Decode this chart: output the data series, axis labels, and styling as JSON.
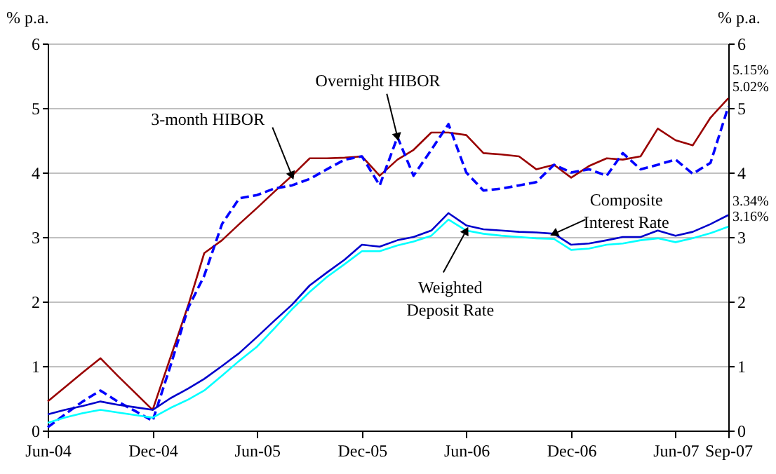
{
  "chart_data": {
    "type": "line",
    "ylabel": "% p.a.",
    "y2label": "% p.a.",
    "x": [
      "2004-06",
      "2004-07",
      "2004-08",
      "2004-09",
      "2004-10",
      "2004-11",
      "2004-12",
      "2005-01",
      "2005-02",
      "2005-03",
      "2005-04",
      "2005-05",
      "2005-06",
      "2005-07",
      "2005-08",
      "2005-09",
      "2005-10",
      "2005-11",
      "2005-12",
      "2006-01",
      "2006-02",
      "2006-03",
      "2006-04",
      "2006-05",
      "2006-06",
      "2006-07",
      "2006-08",
      "2006-09",
      "2006-10",
      "2006-11",
      "2006-12",
      "2007-01",
      "2007-02",
      "2007-03",
      "2007-04",
      "2007-05",
      "2007-06",
      "2007-07",
      "2007-08",
      "2007-09"
    ],
    "series": [
      {
        "name": "3-month HIBOR",
        "color": "#990000",
        "line_style": "solid",
        "values": [
          0.45,
          0.67,
          0.9,
          1.12,
          0.85,
          0.58,
          0.32,
          1.13,
          1.94,
          2.75,
          2.95,
          3.2,
          3.45,
          3.7,
          3.95,
          4.22,
          4.22,
          4.23,
          4.25,
          3.95,
          4.2,
          4.35,
          4.62,
          4.62,
          4.58,
          4.3,
          4.28,
          4.25,
          4.05,
          4.12,
          3.92,
          4.1,
          4.22,
          4.2,
          4.25,
          4.68,
          4.5,
          4.42,
          4.85,
          5.15
        ],
        "value_labels": [
          null,
          null,
          null,
          null,
          null,
          null,
          null,
          null,
          null,
          null,
          null,
          null,
          null,
          null,
          null,
          null,
          null,
          null,
          null,
          null,
          null,
          null,
          null,
          null,
          null,
          null,
          null,
          null,
          null,
          null,
          null,
          null,
          null,
          null,
          null,
          null,
          null,
          null,
          null,
          "5.15%"
        ]
      },
      {
        "name": "Overnight HIBOR",
        "color": "#0000ff",
        "line_style": "dashed",
        "values": [
          0.05,
          0.25,
          0.45,
          0.62,
          0.45,
          0.3,
          0.15,
          1.0,
          1.9,
          2.4,
          3.2,
          3.6,
          3.65,
          3.75,
          3.8,
          3.9,
          4.05,
          4.2,
          4.25,
          3.8,
          4.55,
          3.95,
          4.35,
          4.75,
          4.0,
          3.72,
          3.75,
          3.8,
          3.85,
          4.12,
          4.0,
          4.05,
          3.95,
          4.3,
          4.05,
          4.12,
          4.2,
          3.98,
          4.15,
          5.02
        ],
        "value_labels": [
          null,
          null,
          null,
          null,
          null,
          null,
          null,
          null,
          null,
          null,
          null,
          null,
          null,
          null,
          null,
          null,
          null,
          null,
          null,
          null,
          null,
          null,
          null,
          null,
          null,
          null,
          null,
          null,
          null,
          null,
          null,
          null,
          null,
          null,
          null,
          null,
          null,
          null,
          null,
          "5.02%"
        ]
      },
      {
        "name": "Composite Interest Rate",
        "color": "#0000cc",
        "line_style": "solid",
        "values": [
          0.25,
          0.32,
          0.38,
          0.45,
          0.4,
          0.36,
          0.32,
          0.5,
          0.65,
          0.8,
          1.0,
          1.2,
          1.45,
          1.7,
          1.95,
          2.25,
          2.45,
          2.65,
          2.88,
          2.85,
          2.95,
          3.0,
          3.1,
          3.37,
          3.18,
          3.12,
          3.1,
          3.08,
          3.07,
          3.05,
          2.88,
          2.9,
          2.95,
          3.0,
          3.0,
          3.1,
          3.02,
          3.08,
          3.2,
          3.34
        ],
        "value_labels": [
          null,
          null,
          null,
          null,
          null,
          null,
          null,
          null,
          null,
          null,
          null,
          null,
          null,
          null,
          null,
          null,
          null,
          null,
          null,
          null,
          null,
          null,
          null,
          null,
          null,
          null,
          null,
          null,
          null,
          null,
          null,
          null,
          null,
          null,
          null,
          null,
          null,
          null,
          null,
          "3.34%"
        ]
      },
      {
        "name": "Weighted Deposit Rate",
        "color": "#00ffff",
        "line_style": "solid",
        "values": [
          0.12,
          0.2,
          0.27,
          0.32,
          0.28,
          0.24,
          0.2,
          0.35,
          0.48,
          0.62,
          0.85,
          1.08,
          1.3,
          1.58,
          1.88,
          2.15,
          2.38,
          2.58,
          2.78,
          2.78,
          2.87,
          2.93,
          3.02,
          3.27,
          3.1,
          3.05,
          3.02,
          3.0,
          2.98,
          2.97,
          2.8,
          2.82,
          2.88,
          2.9,
          2.95,
          2.98,
          2.92,
          2.98,
          3.06,
          3.16
        ],
        "value_labels": [
          null,
          null,
          null,
          null,
          null,
          null,
          null,
          null,
          null,
          null,
          null,
          null,
          null,
          null,
          null,
          null,
          null,
          null,
          null,
          null,
          null,
          null,
          null,
          null,
          null,
          null,
          null,
          null,
          null,
          null,
          null,
          null,
          null,
          null,
          null,
          null,
          null,
          null,
          null,
          "3.16%"
        ]
      }
    ],
    "xlim": [
      "2004-06",
      "2007-09"
    ],
    "xticks": [
      {
        "value": "2004-06",
        "label": "Jun-04"
      },
      {
        "value": "2004-12",
        "label": "Dec-04"
      },
      {
        "value": "2005-06",
        "label": "Jun-05"
      },
      {
        "value": "2005-12",
        "label": "Dec-05"
      },
      {
        "value": "2006-06",
        "label": "Jun-06"
      },
      {
        "value": "2006-12",
        "label": "Dec-06"
      },
      {
        "value": "2007-06",
        "label": "Jun-07"
      },
      {
        "value": "2007-09",
        "label": "Sep-07"
      }
    ],
    "ylim": [
      0,
      6
    ],
    "yticks": [
      0,
      1,
      2,
      3,
      4,
      5,
      6
    ],
    "y2lim": [
      0,
      6
    ],
    "y2ticks": [
      0,
      1,
      2,
      3,
      4,
      5,
      6
    ],
    "grid": "y",
    "marker": "none"
  }
}
